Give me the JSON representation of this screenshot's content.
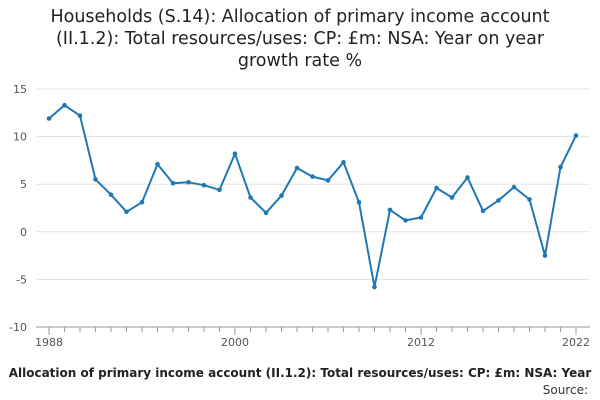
{
  "chart_data": {
    "type": "line",
    "title_lines": [
      "Households (S.14): Allocation of primary income account",
      "(II.1.2): Total resources/uses: CP: £m: NSA: Year on year",
      "growth rate %"
    ],
    "xlabel": "",
    "ylabel": "",
    "x": [
      1988,
      1989,
      1990,
      1991,
      1992,
      1993,
      1994,
      1995,
      1996,
      1997,
      1998,
      1999,
      2000,
      2001,
      2002,
      2003,
      2004,
      2005,
      2006,
      2007,
      2008,
      2009,
      2010,
      2011,
      2012,
      2013,
      2014,
      2015,
      2016,
      2017,
      2018,
      2019,
      2020,
      2021,
      2022
    ],
    "series": [
      {
        "values": [
          11.9,
          13.3,
          12.2,
          5.5,
          3.9,
          2.1,
          3.1,
          7.1,
          5.1,
          5.2,
          4.9,
          4.4,
          8.2,
          3.6,
          2.0,
          3.8,
          6.7,
          5.8,
          5.4,
          7.3,
          3.1,
          -5.8,
          2.3,
          1.2,
          1.5,
          4.6,
          3.6,
          5.7,
          2.2,
          3.3,
          4.7,
          3.4,
          -2.5,
          6.8,
          10.1
        ],
        "color": "#1f77b4"
      }
    ],
    "xlim": [
      1988,
      2022
    ],
    "ylim": [
      -10,
      15
    ],
    "x_ticks": [
      1988,
      2000,
      2012,
      2022
    ],
    "y_ticks": [
      15,
      10,
      5,
      0,
      -5,
      -10
    ],
    "grid": "horizontal",
    "legend": "none"
  },
  "footer": {
    "caption": "Allocation of primary income account (II.1.2): Total resources/uses: CP: £m: NSA: Year",
    "source": "Source:"
  }
}
